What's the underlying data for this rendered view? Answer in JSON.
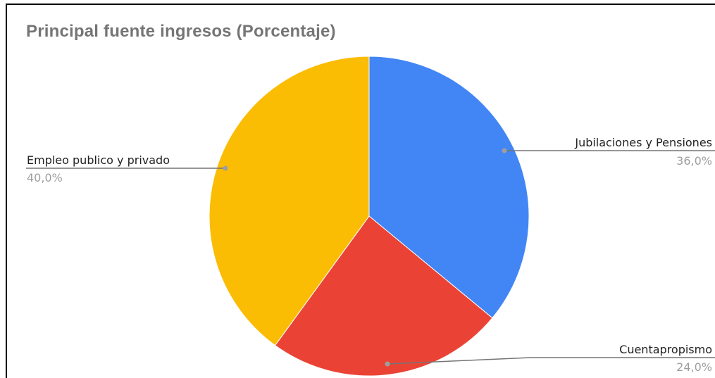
{
  "chart_data": {
    "type": "pie",
    "title": "Principal fuente ingresos (Porcentaje)",
    "slices": [
      {
        "label": "Jubilaciones y Pensiones",
        "value": 36.0,
        "value_label": "36,0%",
        "color": "#4285F4"
      },
      {
        "label": "Cuentapropismo",
        "value": 24.0,
        "value_label": "24,0%",
        "color": "#EA4335"
      },
      {
        "label": "Empleo publico y privado",
        "value": 40.0,
        "value_label": "40,0%",
        "color": "#FBBC04"
      }
    ],
    "start_angle": "12 o'clock",
    "direction": "clockwise",
    "legend": "none",
    "label_style": "callout lines with name and percentage"
  }
}
